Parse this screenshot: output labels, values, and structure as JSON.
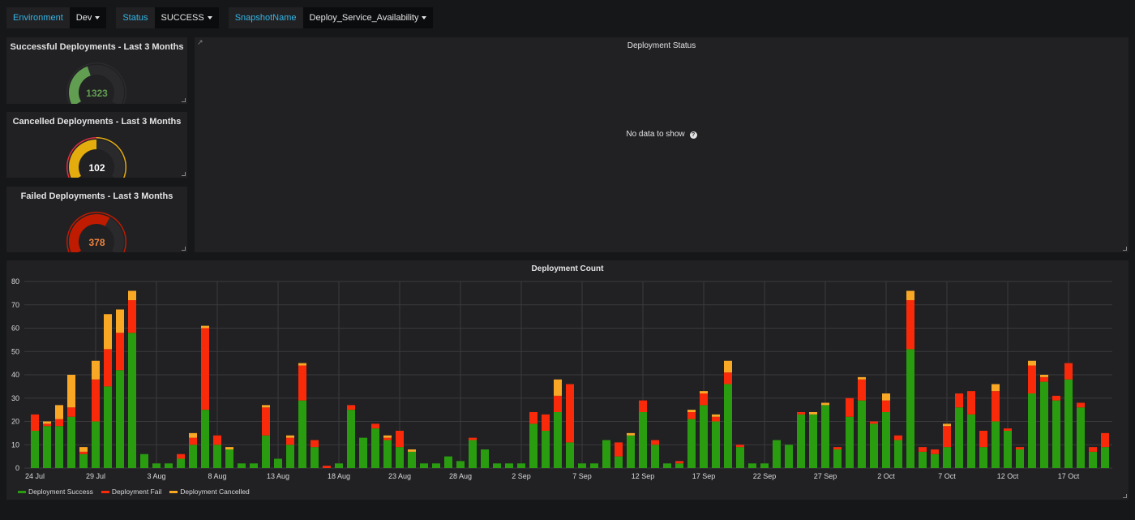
{
  "variables": [
    {
      "label": "Environment",
      "value": "Dev"
    },
    {
      "label": "Status",
      "value": "SUCCESS"
    },
    {
      "label": "SnapshotName",
      "value": "Deploy_Service_Availability"
    }
  ],
  "gauges": [
    {
      "title": "Successful Deployments - Last 3 Months",
      "value": "1323",
      "fill": 0.42,
      "color": "#629e51",
      "text_color": "#629e51",
      "ring": [
        "#2b2b2d"
      ]
    },
    {
      "title": "Cancelled Deployments - Last 3 Months",
      "value": "102",
      "fill": 0.5,
      "color": "#e5ac0e",
      "text_color": "#ffffff",
      "ring": [
        "#e02f44",
        "#e5ac0e"
      ]
    },
    {
      "title": "Failed Deployments - Last 3 Months",
      "value": "378",
      "fill": 0.62,
      "color": "#bf1b00",
      "text_color": "#ef843c",
      "ring": [
        "#bf1b00"
      ]
    }
  ],
  "status_panel": {
    "title": "Deployment Status",
    "message": "No data to show",
    "help_icon": "question-circle-icon",
    "link_icon": "external-link-icon"
  },
  "chart_data": {
    "type": "bar",
    "stacked": true,
    "title": "Deployment Count",
    "ylim": [
      0,
      80
    ],
    "yticks": [
      0,
      10,
      20,
      30,
      40,
      50,
      60,
      70,
      80
    ],
    "xtick_labels": [
      "24 Jul",
      "29 Jul",
      "3 Aug",
      "8 Aug",
      "13 Aug",
      "18 Aug",
      "23 Aug",
      "28 Aug",
      "2 Sep",
      "7 Sep",
      "12 Sep",
      "17 Sep",
      "22 Sep",
      "27 Sep",
      "2 Oct",
      "7 Oct",
      "12 Oct",
      "17 Oct"
    ],
    "grid": true,
    "legend_placement": "bottom-left",
    "x_start": "24 Jul",
    "x_interval": "1 day",
    "series": [
      {
        "name": "Deployment Success",
        "color": "#299c0f",
        "values": [
          16,
          18,
          18,
          22,
          6,
          20,
          35,
          42,
          58,
          6,
          2,
          2,
          4,
          10,
          25,
          10,
          8,
          2,
          2,
          14,
          4,
          10,
          29,
          9,
          0,
          2,
          25,
          13,
          17,
          12,
          9,
          7,
          2,
          2,
          5,
          3,
          12,
          8,
          2,
          2,
          2,
          19,
          16,
          24,
          11,
          2,
          2,
          12,
          5,
          14,
          24,
          10,
          2,
          2,
          21,
          27,
          20,
          36,
          9,
          2,
          2,
          12,
          10,
          23,
          23,
          27,
          8,
          22,
          29,
          19,
          24,
          12,
          51,
          7,
          6,
          9,
          26,
          23,
          9,
          20,
          16,
          8,
          32,
          37,
          29,
          38,
          26,
          7,
          9
        ]
      },
      {
        "name": "Deployment Fail",
        "color": "#f82a0a",
        "values": [
          7,
          1,
          3,
          4,
          1,
          18,
          16,
          16,
          14,
          0,
          0,
          0,
          2,
          3,
          35,
          4,
          0,
          0,
          0,
          12,
          0,
          3,
          15,
          3,
          1,
          0,
          2,
          0,
          2,
          1,
          7,
          0,
          0,
          0,
          0,
          0,
          1,
          0,
          0,
          0,
          0,
          5,
          7,
          7,
          25,
          0,
          0,
          0,
          6,
          0,
          5,
          2,
          0,
          1,
          3,
          5,
          2,
          5,
          1,
          0,
          0,
          0,
          0,
          1,
          0,
          0,
          1,
          8,
          9,
          1,
          5,
          2,
          21,
          2,
          2,
          9,
          6,
          10,
          7,
          13,
          1,
          1,
          12,
          2,
          2,
          7,
          2,
          2,
          6
        ]
      },
      {
        "name": "Deployment Cancelled",
        "color": "#f9a825",
        "values": [
          0,
          1,
          6,
          14,
          2,
          8,
          15,
          10,
          4,
          0,
          0,
          0,
          0,
          2,
          1,
          0,
          1,
          0,
          0,
          1,
          0,
          1,
          1,
          0,
          0,
          0,
          0,
          0,
          0,
          1,
          0,
          1,
          0,
          0,
          0,
          0,
          0,
          0,
          0,
          0,
          0,
          0,
          0,
          7,
          0,
          0,
          0,
          0,
          0,
          1,
          0,
          0,
          0,
          0,
          1,
          1,
          1,
          5,
          0,
          0,
          0,
          0,
          0,
          0,
          1,
          1,
          0,
          0,
          1,
          0,
          3,
          0,
          4,
          0,
          0,
          1,
          0,
          0,
          0,
          3,
          0,
          0,
          2,
          1,
          0,
          0,
          0,
          0,
          0
        ]
      }
    ]
  }
}
